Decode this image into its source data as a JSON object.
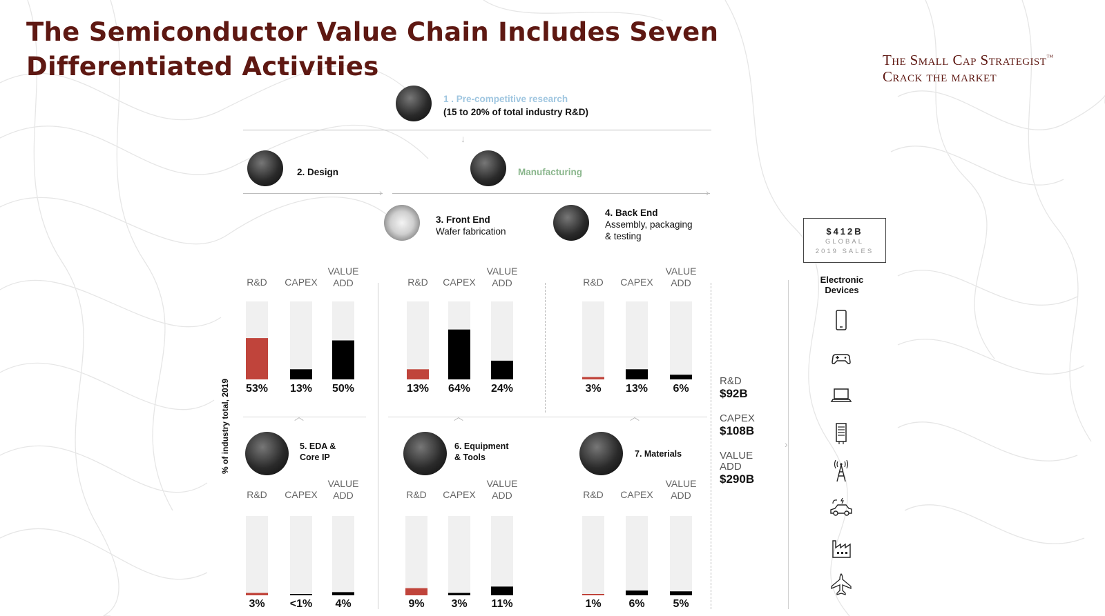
{
  "title": "The Semiconductor Value Chain Includes Seven Differentiated Activities",
  "brand": {
    "line1": "The Small Cap Strategist",
    "tm": "™",
    "line2": "Crack the market"
  },
  "stages": {
    "research": {
      "label": "1 . Pre-competitive research",
      "sub": "(15 to 20% of total industry R&D)"
    },
    "design": {
      "label": "2. Design"
    },
    "manufacturing": {
      "label": "Manufacturing"
    },
    "front_end": {
      "label": "3. Front End",
      "sub": "Wafer fabrication"
    },
    "back_end": {
      "label": "4. Back End",
      "sub1": "Assembly, packaging",
      "sub2": "& testing"
    },
    "eda": {
      "label1": "5. EDA &",
      "label2": "Core IP"
    },
    "equipment": {
      "label1": "6. Equipment",
      "label2": "& Tools"
    },
    "materials": {
      "label": "7. Materials"
    }
  },
  "y_axis_label": "% of industry total, 2019",
  "totals": {
    "box_value": "$412B",
    "box_line1": "GLOBAL",
    "box_line2": "2019 SALES",
    "rd_label": "R&D",
    "rd_value": "$92B",
    "capex_label": "CAPEX",
    "capex_value": "$108B",
    "va_label1": "VALUE",
    "va_label2": "ADD",
    "va_value": "$290B"
  },
  "devices": {
    "title1": "Electronic",
    "title2": "Devices",
    "icons": [
      "smartphone-icon",
      "gamepad-icon",
      "laptop-icon",
      "server-icon",
      "cell-tower-icon",
      "electric-car-icon",
      "factory-icon",
      "airplane-icon"
    ]
  },
  "colors": {
    "title": "#5e1812",
    "rd_bar": "#c0443b",
    "other_bar": "#000000",
    "track": "#f0f0f0"
  },
  "chart_data": [
    {
      "type": "bar",
      "title": "2. Design",
      "categories": [
        "R&D",
        "CAPEX",
        "VALUE ADD"
      ],
      "values": [
        53,
        13,
        50
      ],
      "labels": [
        "53%",
        "13%",
        "50%"
      ],
      "ylim": [
        0,
        100
      ],
      "ylabel": "% of industry total, 2019"
    },
    {
      "type": "bar",
      "title": "3. Front End",
      "categories": [
        "R&D",
        "CAPEX",
        "VALUE ADD"
      ],
      "values": [
        13,
        64,
        24
      ],
      "labels": [
        "13%",
        "64%",
        "24%"
      ],
      "ylim": [
        0,
        100
      ],
      "ylabel": "% of industry total, 2019"
    },
    {
      "type": "bar",
      "title": "4. Back End",
      "categories": [
        "R&D",
        "CAPEX",
        "VALUE ADD"
      ],
      "values": [
        3,
        13,
        6
      ],
      "labels": [
        "3%",
        "13%",
        "6%"
      ],
      "ylim": [
        0,
        100
      ],
      "ylabel": "% of industry total, 2019"
    },
    {
      "type": "bar",
      "title": "5. EDA & Core IP",
      "categories": [
        "R&D",
        "CAPEX",
        "VALUE ADD"
      ],
      "values": [
        3,
        0.5,
        4
      ],
      "labels": [
        "3%",
        "<1%",
        "4%"
      ],
      "ylim": [
        0,
        100
      ],
      "ylabel": "% of industry total, 2019"
    },
    {
      "type": "bar",
      "title": "6. Equipment & Tools",
      "categories": [
        "R&D",
        "CAPEX",
        "VALUE ADD"
      ],
      "values": [
        9,
        3,
        11
      ],
      "labels": [
        "9%",
        "3%",
        "11%"
      ],
      "ylim": [
        0,
        100
      ],
      "ylabel": "% of industry total, 2019"
    },
    {
      "type": "bar",
      "title": "7. Materials",
      "categories": [
        "R&D",
        "CAPEX",
        "VALUE ADD"
      ],
      "values": [
        1,
        6,
        5
      ],
      "labels": [
        "1%",
        "6%",
        "5%"
      ],
      "ylim": [
        0,
        100
      ],
      "ylabel": "% of industry total, 2019"
    }
  ]
}
